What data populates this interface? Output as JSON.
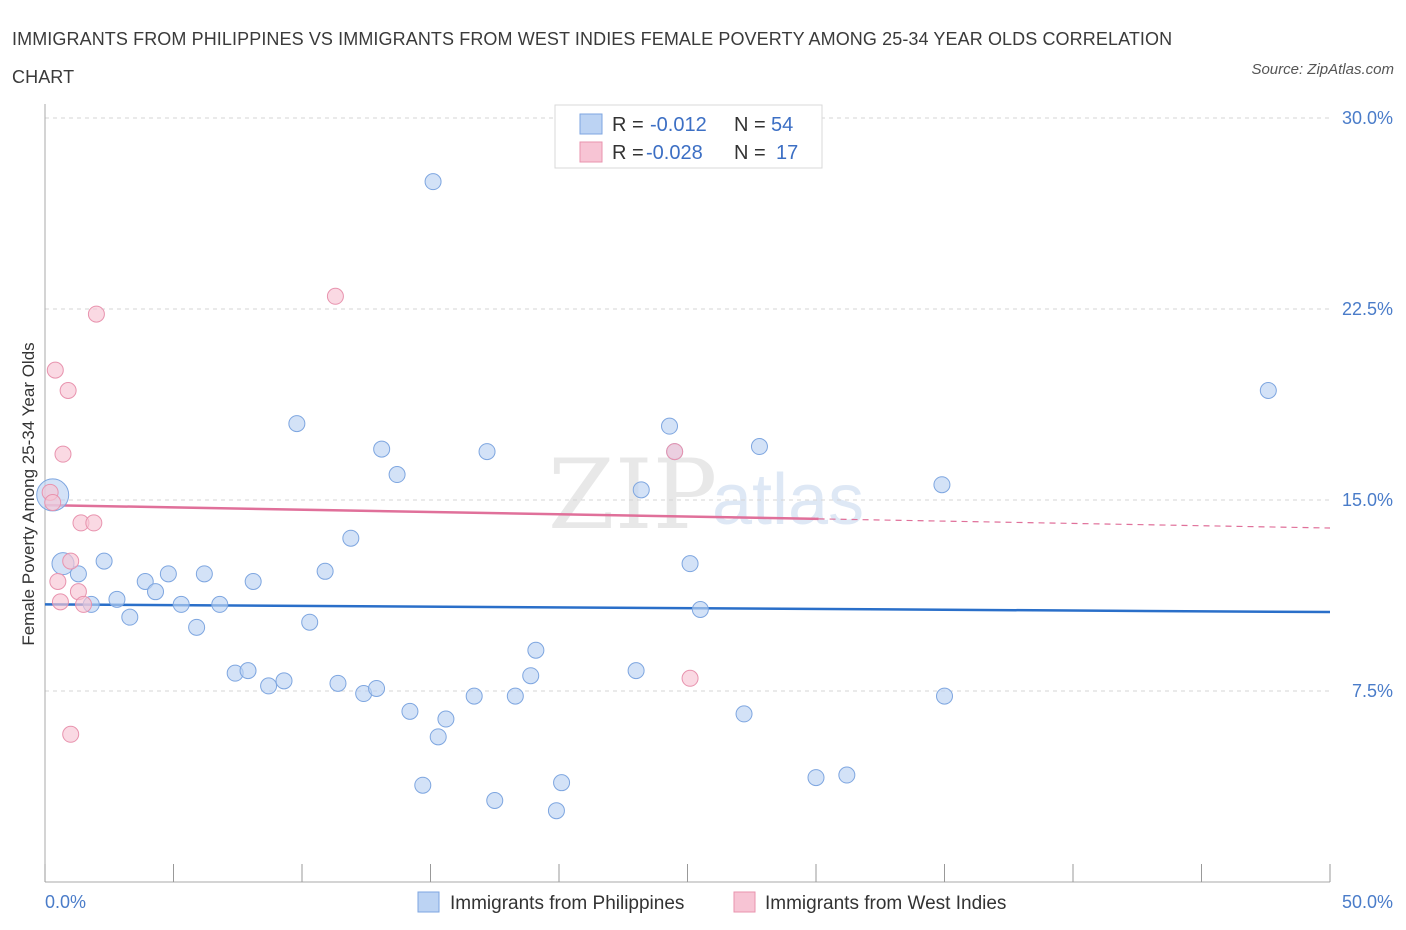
{
  "header": {
    "title": "IMMIGRANTS FROM PHILIPPINES VS IMMIGRANTS FROM WEST INDIES FEMALE POVERTY AMONG 25-34 YEAR OLDS CORRELATION CHART",
    "source": "Source: ZipAtlas.com"
  },
  "watermark": {
    "zip": "ZIP",
    "atlas": "atlas"
  },
  "colors": {
    "blue_fill": "#bcd3f3",
    "blue_stroke": "#7ea6e0",
    "blue_line": "#2a6fc9",
    "pink_fill": "#f7c4d4",
    "pink_stroke": "#e893ae",
    "pink_line": "#e0709a",
    "grid": "#d5d5d5",
    "tick_text": "#4a7cc9"
  },
  "legend": {
    "rows": [
      {
        "r_label": "R = ",
        "r_value": "-0.012",
        "n_label": "N = ",
        "n_value": "54"
      },
      {
        "r_label": "R = ",
        "r_value": "-0.028",
        "n_label": "N = ",
        "n_value": "17"
      }
    ]
  },
  "chart_data": {
    "type": "scatter",
    "title": "IMMIGRANTS FROM PHILIPPINES VS IMMIGRANTS FROM WEST INDIES FEMALE POVERTY AMONG 25-34 YEAR OLDS CORRELATION CHART",
    "xlabel": "",
    "ylabel": "Female Poverty Among 25-34 Year Olds",
    "xlim": [
      0,
      50
    ],
    "ylim": [
      0,
      30
    ],
    "x_tick_labels": [
      "0.0%",
      "50.0%"
    ],
    "y_ticks": [
      7.5,
      15.0,
      22.5,
      30.0
    ],
    "y_tick_labels": [
      "7.5%",
      "15.0%",
      "22.5%",
      "30.0%"
    ],
    "grid": true,
    "legend_position": "bottom-center",
    "series": [
      {
        "name": "Immigrants from Philippines",
        "color": "blue",
        "r": -0.012,
        "n": 54,
        "trend": {
          "x": [
            0,
            50
          ],
          "y": [
            10.9,
            10.6
          ],
          "dashed_after": null
        },
        "points": [
          [
            0.3,
            15.2,
            3
          ],
          [
            0.7,
            12.5,
            2
          ],
          [
            1.3,
            12.1,
            1
          ],
          [
            1.8,
            10.9,
            1
          ],
          [
            2.3,
            12.6,
            1
          ],
          [
            2.8,
            11.1,
            1
          ],
          [
            3.3,
            10.4,
            1
          ],
          [
            3.9,
            11.8,
            1
          ],
          [
            4.3,
            11.4,
            1
          ],
          [
            4.8,
            12.1,
            1
          ],
          [
            5.3,
            10.9,
            1
          ],
          [
            5.9,
            10.0,
            1
          ],
          [
            6.2,
            12.1,
            1
          ],
          [
            6.8,
            10.9,
            1
          ],
          [
            7.4,
            8.2,
            1
          ],
          [
            7.9,
            8.3,
            1
          ],
          [
            8.1,
            11.8,
            1
          ],
          [
            8.7,
            7.7,
            1
          ],
          [
            9.3,
            7.9,
            1
          ],
          [
            9.8,
            18.0,
            1
          ],
          [
            10.3,
            10.2,
            1
          ],
          [
            10.9,
            12.2,
            1
          ],
          [
            11.4,
            7.8,
            1
          ],
          [
            11.9,
            13.5,
            1
          ],
          [
            12.4,
            7.4,
            1
          ],
          [
            12.9,
            7.6,
            1
          ],
          [
            13.1,
            17.0,
            1
          ],
          [
            13.7,
            16.0,
            1
          ],
          [
            14.2,
            6.7,
            1
          ],
          [
            14.7,
            3.8,
            1
          ],
          [
            15.3,
            5.7,
            1
          ],
          [
            15.6,
            6.4,
            1
          ],
          [
            15.1,
            27.5,
            1
          ],
          [
            16.7,
            7.3,
            1
          ],
          [
            17.2,
            16.9,
            1
          ],
          [
            17.5,
            3.2,
            1
          ],
          [
            18.3,
            7.3,
            1
          ],
          [
            18.9,
            8.1,
            1
          ],
          [
            19.1,
            9.1,
            1
          ],
          [
            19.9,
            2.8,
            1
          ],
          [
            20.1,
            3.9,
            1
          ],
          [
            23.0,
            8.3,
            1
          ],
          [
            23.2,
            15.4,
            1
          ],
          [
            24.3,
            17.9,
            1
          ],
          [
            24.5,
            16.9,
            1
          ],
          [
            25.1,
            12.5,
            1
          ],
          [
            25.5,
            10.7,
            1
          ],
          [
            27.2,
            6.6,
            1
          ],
          [
            27.8,
            17.1,
            1
          ],
          [
            30.0,
            4.1,
            1
          ],
          [
            31.2,
            4.2,
            1
          ],
          [
            34.9,
            15.6,
            1
          ],
          [
            35.0,
            7.3,
            1
          ],
          [
            47.6,
            19.3,
            1
          ]
        ]
      },
      {
        "name": "Immigrants from West Indies",
        "color": "pink",
        "r": -0.028,
        "n": 17,
        "trend": {
          "x": [
            0,
            50
          ],
          "y": [
            14.8,
            13.9
          ],
          "dashed_after": 30.1
        },
        "points": [
          [
            0.2,
            15.3,
            1
          ],
          [
            0.3,
            14.9,
            1
          ],
          [
            0.4,
            20.1,
            1
          ],
          [
            0.5,
            11.8,
            1
          ],
          [
            0.6,
            11.0,
            1
          ],
          [
            0.7,
            16.8,
            1
          ],
          [
            0.9,
            19.3,
            1
          ],
          [
            1.0,
            12.6,
            1
          ],
          [
            1.0,
            5.8,
            1
          ],
          [
            1.3,
            11.4,
            1
          ],
          [
            1.4,
            14.1,
            1
          ],
          [
            1.5,
            10.9,
            1
          ],
          [
            1.9,
            14.1,
            1
          ],
          [
            2.0,
            22.3,
            1
          ],
          [
            11.3,
            23.0,
            1
          ],
          [
            24.5,
            16.9,
            1
          ],
          [
            25.1,
            8.0,
            1
          ]
        ]
      }
    ]
  }
}
